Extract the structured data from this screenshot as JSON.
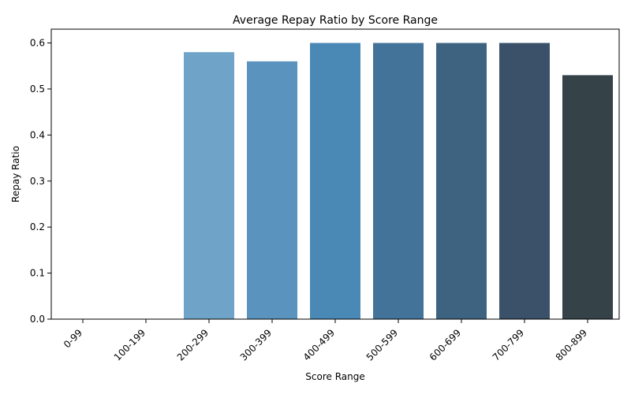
{
  "chart_data": {
    "type": "bar",
    "title": "Average Repay Ratio by Score Range",
    "xlabel": "Score Range",
    "ylabel": "Repay Ratio",
    "categories": [
      "0-99",
      "100-199",
      "200-299",
      "300-399",
      "400-499",
      "500-599",
      "600-699",
      "700-799",
      "800-899"
    ],
    "values": [
      0,
      0,
      0.58,
      0.56,
      0.6,
      0.6,
      0.6,
      0.6,
      0.53
    ],
    "colors": [
      "#8fb8dc",
      "#7fafd4",
      "#6fa3c7",
      "#5a93bd",
      "#4a88b6",
      "#44739a",
      "#3e6381",
      "#3a5169",
      "#354248"
    ],
    "ylim": [
      0,
      0.63
    ],
    "yticks": [
      "0.0",
      "0.1",
      "0.2",
      "0.3",
      "0.4",
      "0.5",
      "0.6"
    ],
    "ytick_values": [
      0,
      0.1,
      0.2,
      0.3,
      0.4,
      0.5,
      0.6
    ],
    "grid": false,
    "legend": "none"
  }
}
